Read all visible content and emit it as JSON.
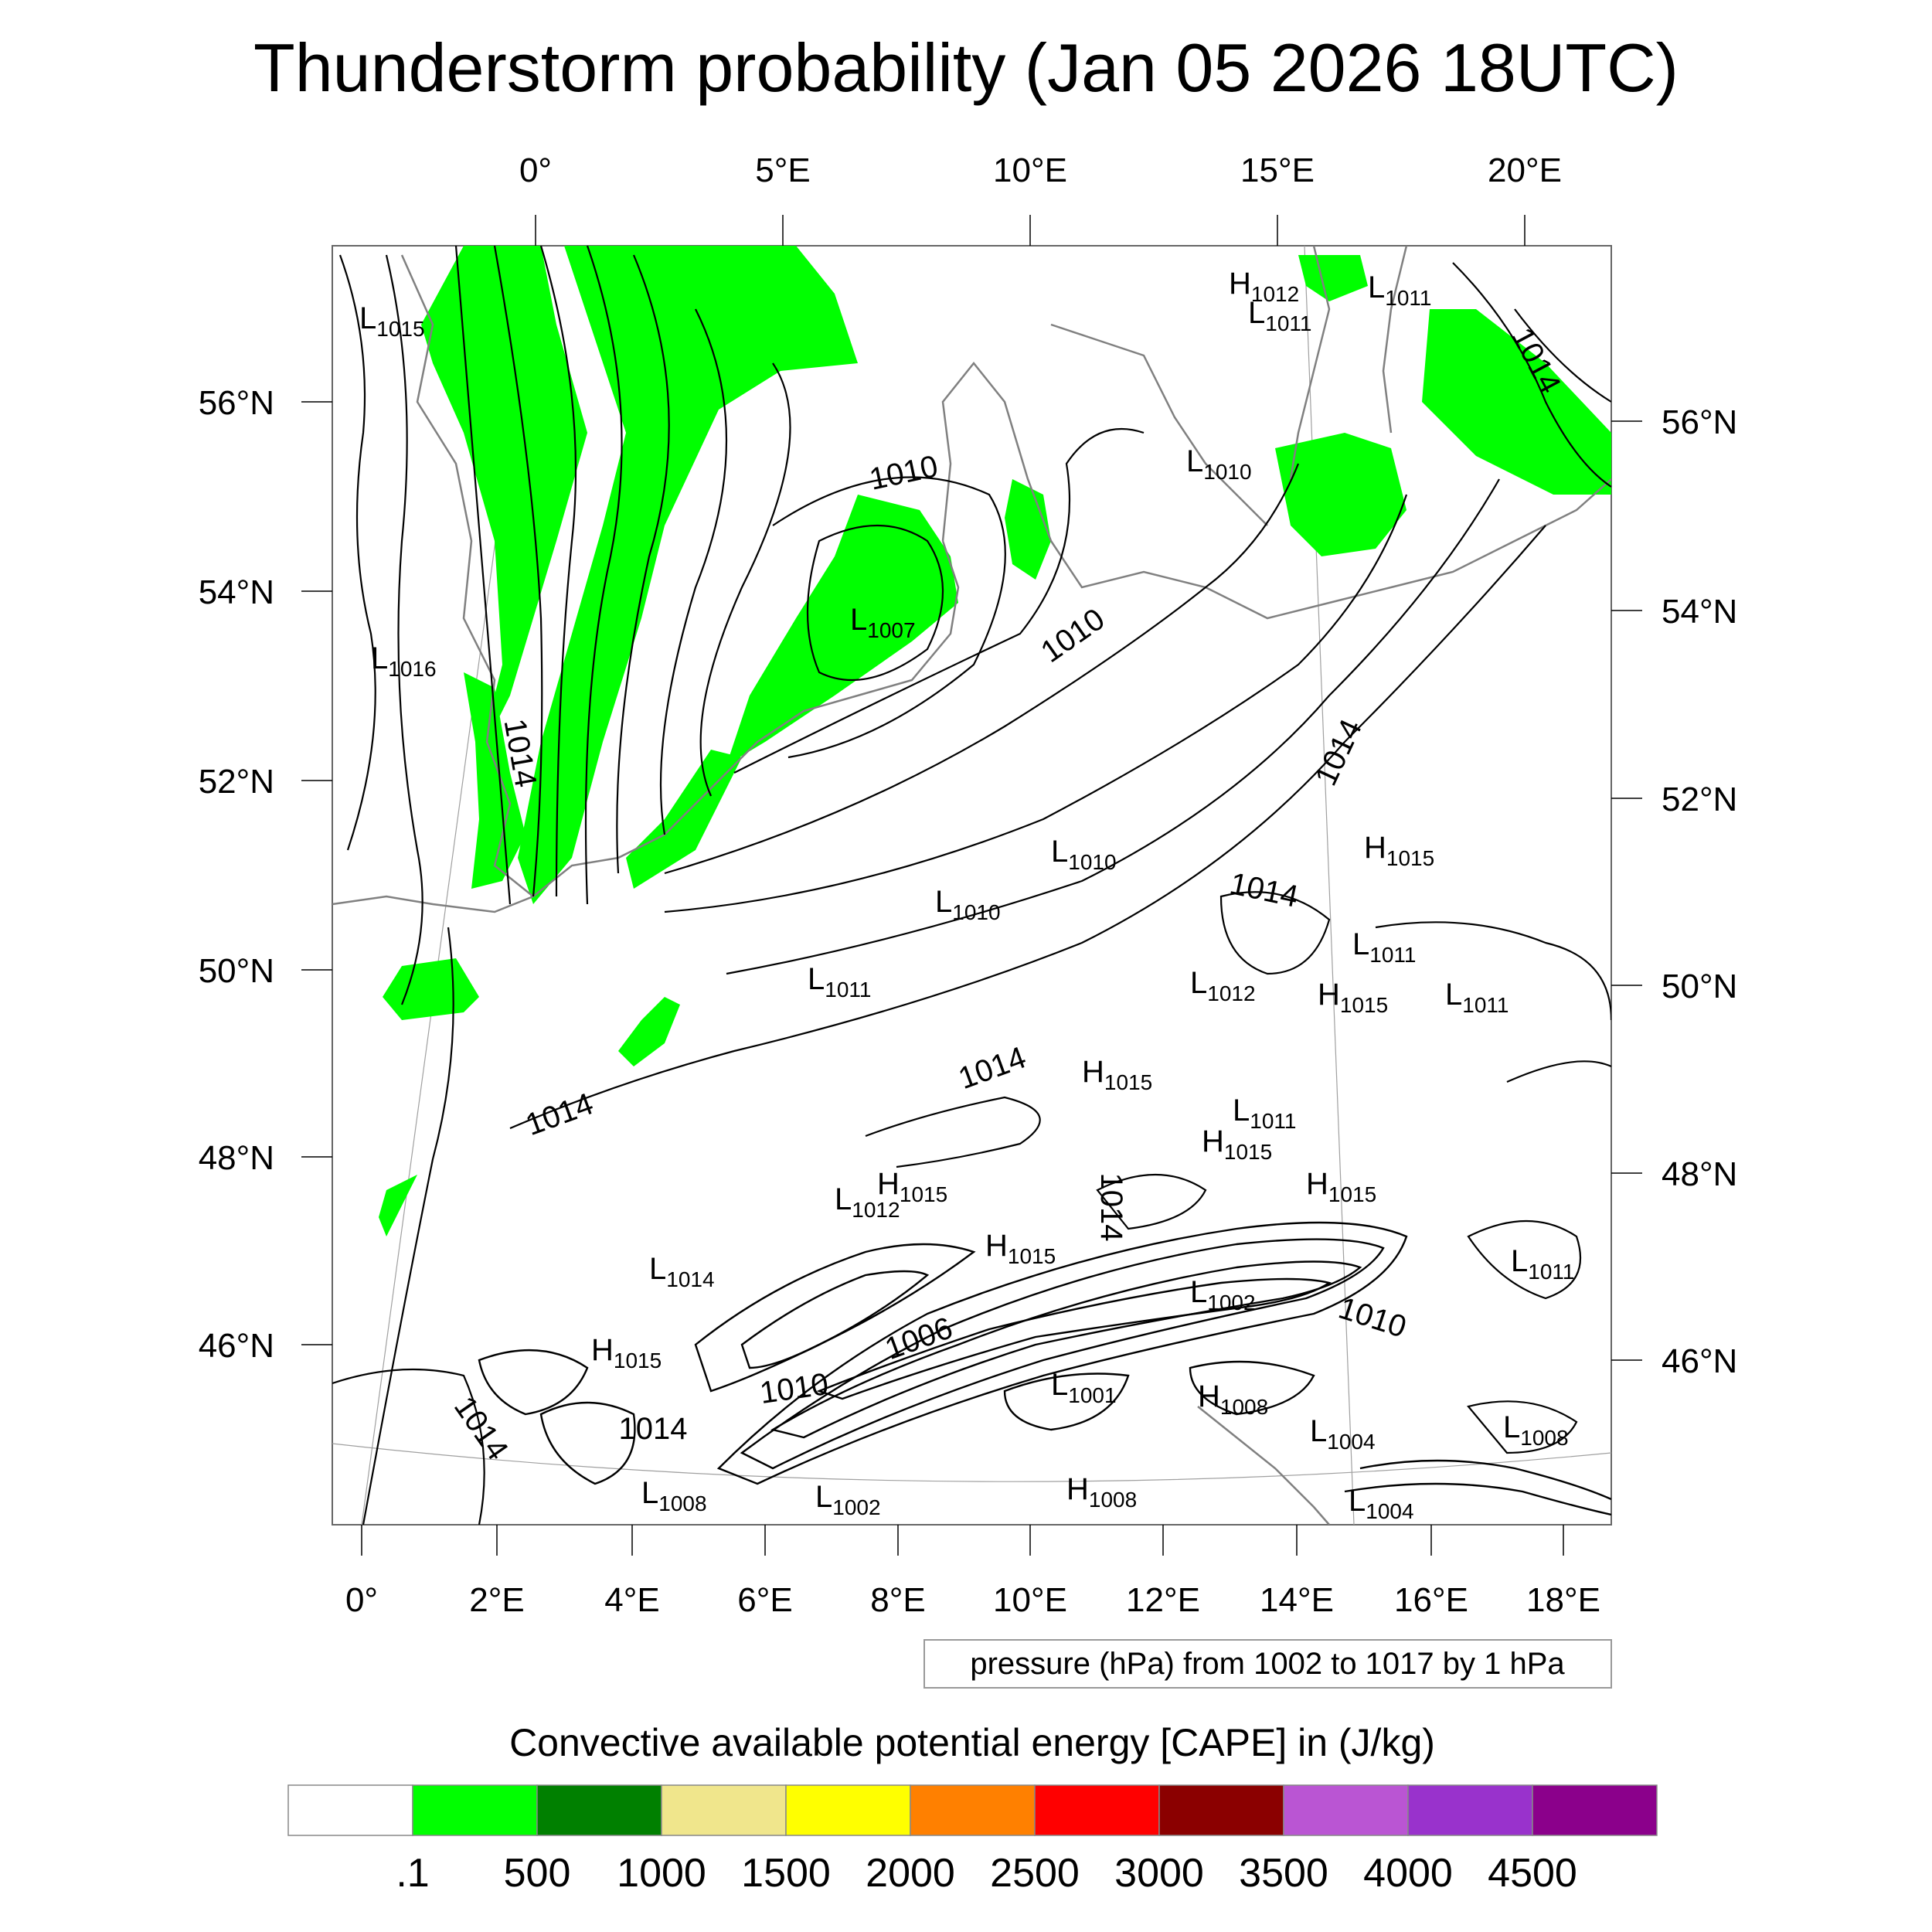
{
  "title": "Thunderstorm probability (Jan 05 2026 18UTC)",
  "top_lon_labels": [
    "0°",
    "5°E",
    "10°E",
    "15°E",
    "20°E"
  ],
  "bottom_lon_labels": [
    "0°",
    "2°E",
    "4°E",
    "6°E",
    "8°E",
    "10°E",
    "12°E",
    "14°E",
    "16°E",
    "18°E"
  ],
  "left_lat_labels": [
    "56°N",
    "54°N",
    "52°N",
    "50°N",
    "48°N",
    "46°N"
  ],
  "right_lat_labels": [
    "56°N",
    "54°N",
    "52°N",
    "50°N",
    "48°N",
    "46°N"
  ],
  "pressure_centers": [
    {
      "letter": "L",
      "value": "1015"
    },
    {
      "letter": "L",
      "value": "1016"
    },
    {
      "letter": "L",
      "value": "1007"
    },
    {
      "letter": "H",
      "value": "1012"
    },
    {
      "letter": "L",
      "value": "1011"
    },
    {
      "letter": "L",
      "value": "1011"
    },
    {
      "letter": "L",
      "value": "1010"
    },
    {
      "letter": "L",
      "value": "1010"
    },
    {
      "letter": "L",
      "value": "1010"
    },
    {
      "letter": "H",
      "value": "1015"
    },
    {
      "letter": "L",
      "value": "1011"
    },
    {
      "letter": "L",
      "value": "1011"
    },
    {
      "letter": "L",
      "value": "1012"
    },
    {
      "letter": "H",
      "value": "1015"
    },
    {
      "letter": "L",
      "value": "1011"
    },
    {
      "letter": "H",
      "value": "1015"
    },
    {
      "letter": "L",
      "value": "1011"
    },
    {
      "letter": "H",
      "value": "1015"
    },
    {
      "letter": "H",
      "value": "1015"
    },
    {
      "letter": "H",
      "value": "1015"
    },
    {
      "letter": "L",
      "value": "1012"
    },
    {
      "letter": "H",
      "value": "1015"
    },
    {
      "letter": "L",
      "value": "1014"
    },
    {
      "letter": "L",
      "value": "1002"
    },
    {
      "letter": "L",
      "value": "1011"
    },
    {
      "letter": "H",
      "value": "1015"
    },
    {
      "letter": "L",
      "value": "1001"
    },
    {
      "letter": "H",
      "value": "1008"
    },
    {
      "letter": "L",
      "value": "1004"
    },
    {
      "letter": "L",
      "value": "1008"
    },
    {
      "letter": "L",
      "value": "1008"
    },
    {
      "letter": "L",
      "value": "1002"
    },
    {
      "letter": "H",
      "value": "1008"
    },
    {
      "letter": "L",
      "value": "1004"
    }
  ],
  "contour_labels": [
    "1010",
    "1010",
    "1014",
    "1014",
    "1014",
    "1014",
    "1014",
    "1014",
    "1014",
    "1006",
    "1010",
    "1010",
    "1014",
    "1014"
  ],
  "contour_note": "pressure (hPa) from 1002 to 1017 by 1 hPa",
  "colorbar": {
    "title": "Convective available potential energy [CAPE] in (J/kg)",
    "tick_labels": [
      ".1",
      "500",
      "1000",
      "1500",
      "2000",
      "2500",
      "3000",
      "3500",
      "4000",
      "4500"
    ],
    "colors": [
      "#ffffff",
      "#00ff00",
      "#008000",
      "#f0e68c",
      "#ffff00",
      "#ff8000",
      "#ff0000",
      "#8b0000",
      "#ba55d3",
      "#9932cc",
      "#8b008b"
    ]
  },
  "colors": {
    "cape_shading": "#00ff00",
    "isobar": "#000000",
    "coastline": "#808080"
  }
}
